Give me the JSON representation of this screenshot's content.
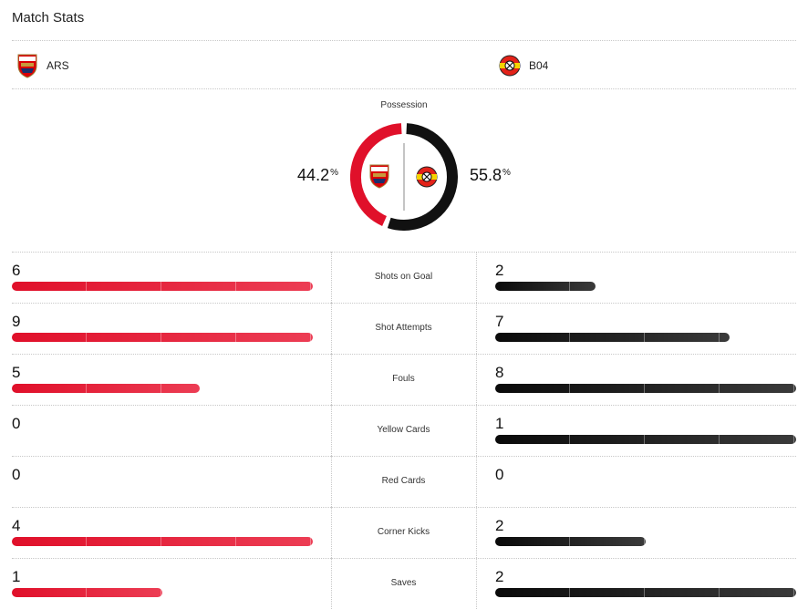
{
  "header": {
    "title": "Match Stats"
  },
  "teams": {
    "home": {
      "abbr": "ARS",
      "crest_icon": "arsenal-crest-icon",
      "color": "#e0102a"
    },
    "away": {
      "abbr": "B04",
      "crest_icon": "leverkusen-crest-icon",
      "color": "#111111"
    }
  },
  "possession": {
    "label": "Possession",
    "home_value": "44.2",
    "away_value": "55.8",
    "unit": "%",
    "home_fraction": 0.442,
    "away_fraction": 0.558
  },
  "stats": [
    {
      "label": "Shots on Goal",
      "home": "6",
      "away": "2",
      "home_fill": 1.0,
      "away_fill": 0.333
    },
    {
      "label": "Shot Attempts",
      "home": "9",
      "away": "7",
      "home_fill": 1.0,
      "away_fill": 0.778
    },
    {
      "label": "Fouls",
      "home": "5",
      "away": "8",
      "home_fill": 0.625,
      "away_fill": 1.0
    },
    {
      "label": "Yellow Cards",
      "home": "0",
      "away": "1",
      "home_fill": 0.0,
      "away_fill": 1.0
    },
    {
      "label": "Red Cards",
      "home": "0",
      "away": "0",
      "home_fill": 0.0,
      "away_fill": 0.0
    },
    {
      "label": "Corner Kicks",
      "home": "4",
      "away": "2",
      "home_fill": 1.0,
      "away_fill": 0.5
    },
    {
      "label": "Saves",
      "home": "1",
      "away": "2",
      "home_fill": 0.5,
      "away_fill": 1.0
    }
  ]
}
